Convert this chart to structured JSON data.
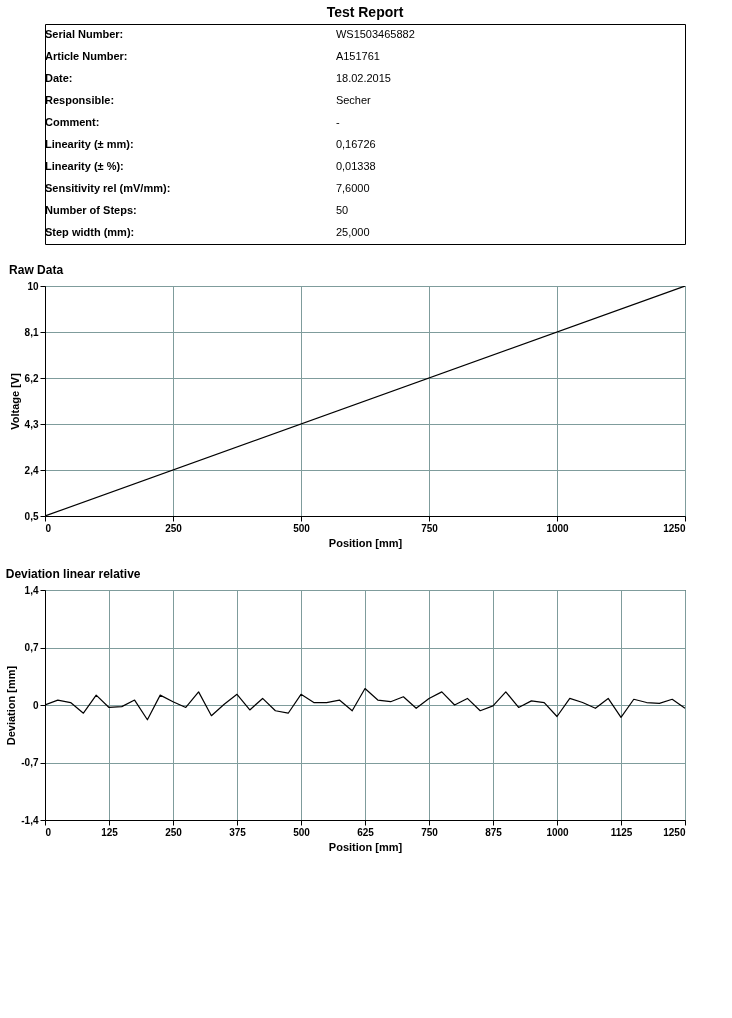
{
  "chart_data": [
    {
      "type": "other",
      "title": "Test Report",
      "annotations": [
        "Serial Number:",
        "WS1503465882",
        "Article Number:",
        "A151761",
        "Date:",
        "18.02.2015",
        "Responsible:",
        "Secher",
        "Comment:",
        "-",
        "Linearity (± mm):",
        "0,16726",
        "Linearity (± %):",
        "0,01338",
        "Sensitivity rel (mV/mm):",
        "7,6000",
        "Number of Steps:",
        "50",
        "Step width (mm):",
        "25,000"
      ]
    },
    {
      "type": "line",
      "title": "Raw Data",
      "xlabel": "Position [mm]",
      "ylabel": "Voltage [V]",
      "grid": true,
      "marker": "none",
      "line_style": "solid",
      "x": [
        0,
        1250
      ],
      "series": [
        {
          "color": "#000000",
          "values": [
            0.5,
            10
          ]
        }
      ],
      "xlim": [
        0,
        1250
      ],
      "xticks": [
        0,
        250,
        500,
        750,
        1000,
        1250
      ],
      "ylim": [
        0.5,
        10
      ],
      "yticks": [
        {
          "value": 0.5,
          "label": "0,5"
        },
        {
          "value": 2.4,
          "label": "2,4"
        },
        {
          "value": 4.3,
          "label": "4,3"
        },
        {
          "value": 6.2,
          "label": "6,2"
        },
        {
          "value": 8.1,
          "label": "8,1"
        },
        10
      ]
    },
    {
      "type": "line",
      "title": "Deviation linear relative",
      "xlabel": "Position [mm]",
      "ylabel": "Deviation [mm]",
      "grid": true,
      "marker": "none",
      "line_style": "solid",
      "x": [
        0,
        25,
        50,
        75,
        100,
        125,
        150,
        175,
        200,
        225,
        250,
        275,
        300,
        325,
        350,
        375,
        400,
        425,
        450,
        475,
        500,
        525,
        550,
        575,
        600,
        625,
        650,
        675,
        700,
        725,
        750,
        775,
        800,
        825,
        850,
        875,
        900,
        925,
        950,
        975,
        1000,
        1025,
        1050,
        1075,
        1100,
        1125,
        1150,
        1175,
        1200,
        1225,
        1250
      ],
      "series": [
        {
          "color": "#000000",
          "values": [
            0,
            0.06,
            0.03,
            -0.1,
            0.12,
            -0.03,
            -0.02,
            0.06,
            -0.18,
            0.12,
            0.04,
            -0.03,
            0.16,
            -0.13,
            0.01,
            0.13,
            -0.06,
            0.08,
            -0.07,
            -0.1,
            0.13,
            0.03,
            0.03,
            0.06,
            -0.07,
            0.2,
            0.06,
            0.04,
            0.1,
            -0.04,
            0.08,
            0.16,
            0,
            0.08,
            -0.07,
            -0.01,
            0.16,
            -0.03,
            0.05,
            0.03,
            -0.14,
            0.08,
            0.03,
            -0.04,
            0.08,
            -0.15,
            0.07,
            0.03,
            0.02,
            0.07,
            -0.04
          ]
        }
      ],
      "xlim": [
        0,
        1250
      ],
      "xticks": [
        0,
        125,
        250,
        375,
        500,
        625,
        750,
        875,
        1000,
        1125,
        1250
      ],
      "ylim": [
        -1.4,
        1.4
      ],
      "yticks": [
        {
          "value": -1.4,
          "label": "-1,4"
        },
        {
          "value": -0.7,
          "label": "-0,7"
        },
        0,
        {
          "value": 0.7,
          "label": "0,7"
        },
        {
          "value": 1.4,
          "label": "1,4"
        }
      ]
    }
  ]
}
